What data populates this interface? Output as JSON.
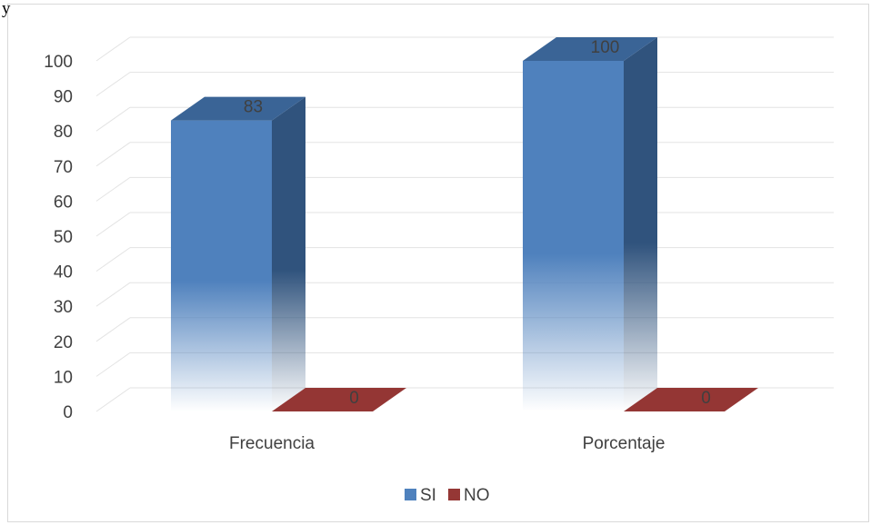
{
  "page": {
    "top_fragment": "y"
  },
  "chart_data": {
    "type": "bar",
    "three_d": true,
    "categories": [
      "Frecuencia",
      "Porcentaje"
    ],
    "series": [
      {
        "name": "SI",
        "values": [
          83,
          100
        ],
        "color": "#4f81bd"
      },
      {
        "name": "NO",
        "values": [
          0,
          0
        ],
        "color": "#953735"
      }
    ],
    "ylim": [
      0,
      100
    ],
    "yticks": [
      0,
      10,
      20,
      30,
      40,
      50,
      60,
      70,
      80,
      90,
      100
    ],
    "grid": true,
    "legend_position": "bottom",
    "data_labels": true
  }
}
